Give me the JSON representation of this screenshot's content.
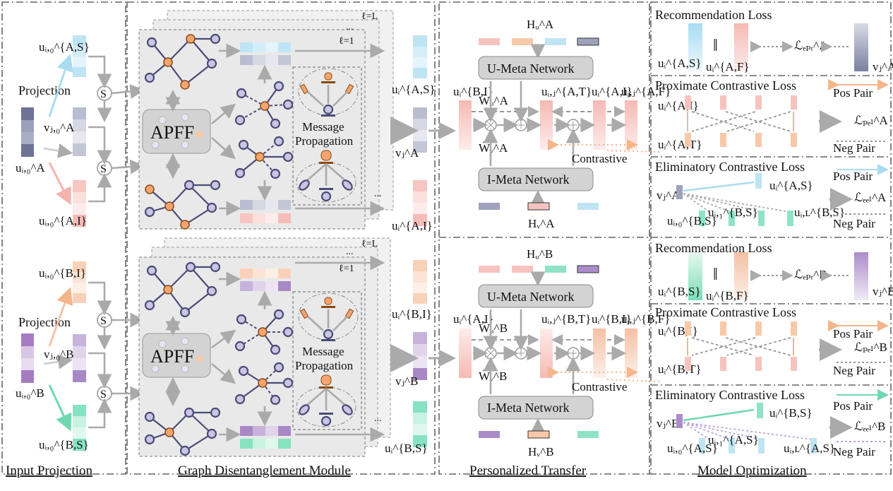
{
  "sections": {
    "input_projection": "Input Projection",
    "graph_module": "Graph Disentanglement Module",
    "personalized_transfer": "Personalized Transfer",
    "model_optimization": "Model Optimization"
  },
  "input": {
    "projection_a": "Projection",
    "projection_b": "Projection",
    "s_symbol": "S",
    "u_a_s0": "uᵢ,₀^{A,S}",
    "v_a0": "vⱼ,₀^A",
    "u_a0": "uᵢ,₀^A",
    "u_a_i0": "uᵢ,₀^{A,I}",
    "u_b_i0": "uᵢ,₀^{B,I}",
    "v_b0": "vⱼ,₀^B",
    "u_b0": "uᵢ,₀^B",
    "u_b_s0": "uᵢ,₀^{B,S}"
  },
  "graph": {
    "apff": "APFF",
    "message": "Message",
    "propagation": "Propagation",
    "layer_l": "ℓ=L",
    "layer_1": "ℓ=1",
    "ellipsis": "...",
    "out_a_s": "uᵢ^{A,S}",
    "out_v_a": "vⱼ^A",
    "out_a_i": "uᵢ^{A,I}",
    "out_b_i": "uᵢ^{B,I}",
    "out_v_b": "vⱼ^B",
    "out_b_s": "uᵢ^{B,S}"
  },
  "transfer": {
    "h_u_a": "Hᵤ^A",
    "h_v_a": "Hᵥ^A",
    "h_u_b": "Hᵤ^B",
    "h_v_b": "Hᵥ^B",
    "u_meta": "U-Meta Network",
    "i_meta": "I-Meta Network",
    "contrastive": "Contrastive",
    "wu_a": "W̃ᵤ^A",
    "wv_a": "W̃ᵥ^A",
    "wu_b": "W̃ᵤ^B",
    "wv_b": "W̃ᵥ^B",
    "a_in": "uᵢ^{B,I}",
    "a_t": "uᵢ,ⱼ^{A,T}",
    "a_i": "uᵢ^{A,I}",
    "a_f": "uᵢ,ⱼ^{A,F}",
    "b_in": "uᵢ^{A,I}",
    "b_t": "uᵢ,ⱼ^{B,T}",
    "b_i": "uᵢ^{B,I}",
    "b_f": "uᵢ,ⱼ^{B,F}"
  },
  "optimization": {
    "rec_loss": "Recommendation Loss",
    "prox_loss": "Proximate Contrastive Loss",
    "elim_loss": "Eliminatory Contrastive Loss",
    "pos_pair": "Pos Pair",
    "neg_pair": "Neg Pair",
    "parallel": "‖",
    "a_rec_s": "uᵢ^{A,S}",
    "a_rec_f": "uᵢ^{A,F}",
    "a_rec_v": "vⱼ^A",
    "l_bpr_a": "ℒₑₚᵣ^A",
    "a_prox_i": "uᵢ^{A,I}",
    "a_prox_t": "uᵢ^{A,T}",
    "l_pcl_a": "ℒₚₑₗ^A",
    "a_elim_v": "vⱼ^A",
    "a_elim_s": "uᵢ^{A,S}",
    "a_elim_b0": "uᵢ,₀^{B,S}",
    "a_elim_b1": "uᵢ,₁^{B,S}",
    "a_elim_bl": "uᵢ,ʟ^{B,S}",
    "l_ecl_a": "ℒₑₑₗ^A",
    "b_rec_s": "uᵢ^{B,S}",
    "b_rec_f": "uᵢ^{B,F}",
    "b_rec_v": "vⱼ^B",
    "l_bpr_b": "ℒₑₚᵣ^B",
    "b_prox_i": "uᵢ^{B,I}",
    "b_prox_t": "uᵢ^{B,T}",
    "l_pcl_b": "ℒₚₑₗ^B",
    "b_elim_v": "vⱼ^B",
    "b_elim_s": "uᵢ^{B,S}",
    "b_elim_a0": "uᵢ,₀^{A,S}",
    "b_elim_a1": "uᵢ,₁^{A,S}",
    "b_elim_al": "uᵢ,ʟ^{A,S}",
    "l_ecl_b": "ℒₑₑₗ^B"
  },
  "colors": {
    "blue": "#bfe4f3",
    "pink": "#f6c3bf",
    "green": "#8fe3c4",
    "purple": "#b49ad0",
    "slate": "#7b80a2",
    "peach": "#f7c9a9",
    "node": "#c9c5e3",
    "orange": "#f4a46e"
  }
}
